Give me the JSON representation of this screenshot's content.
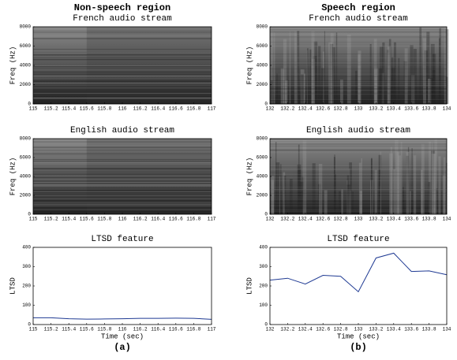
{
  "columns": [
    {
      "title": "Non-speech region",
      "caption": "(a)"
    },
    {
      "title": "Speech region",
      "caption": "(b)"
    }
  ],
  "chart_data": [
    {
      "type": "spectrogram",
      "title": "French audio stream",
      "ylabel": "Freq (Hz)",
      "xlim": [
        115,
        117
      ],
      "xticks": [
        115,
        115.2,
        115.4,
        115.6,
        115.8,
        116,
        116.2,
        116.4,
        116.6,
        116.8,
        117
      ],
      "ylim": [
        0,
        8000
      ],
      "yticks": [
        0,
        2000,
        4000,
        6000,
        8000
      ]
    },
    {
      "type": "spectrogram",
      "title": "French audio stream",
      "ylabel": "Freq (Hz)",
      "xlim": [
        132,
        134
      ],
      "xticks": [
        132,
        132.2,
        132.4,
        132.6,
        132.8,
        133,
        133.2,
        133.4,
        133.6,
        133.8,
        134
      ],
      "ylim": [
        0,
        8000
      ],
      "yticks": [
        0,
        2000,
        4000,
        6000,
        8000
      ]
    },
    {
      "type": "spectrogram",
      "title": "English audio stream",
      "ylabel": "Freq (Hz)",
      "xlim": [
        115,
        117
      ],
      "xticks": [
        115,
        115.2,
        115.4,
        115.6,
        115.8,
        116,
        116.2,
        116.4,
        116.6,
        116.8,
        117
      ],
      "ylim": [
        0,
        8000
      ],
      "yticks": [
        0,
        2000,
        4000,
        6000,
        8000
      ]
    },
    {
      "type": "spectrogram",
      "title": "English audio stream",
      "ylabel": "Freq (Hz)",
      "xlim": [
        132,
        134
      ],
      "xticks": [
        132,
        132.2,
        132.4,
        132.6,
        132.8,
        133,
        133.2,
        133.4,
        133.6,
        133.8,
        134
      ],
      "ylim": [
        0,
        8000
      ],
      "yticks": [
        0,
        2000,
        4000,
        6000,
        8000
      ]
    },
    {
      "type": "line",
      "title": "LTSD feature",
      "ylabel": "LTSD",
      "xlabel": "Time (sec)",
      "xlim": [
        115,
        117
      ],
      "xticks": [
        115,
        115.2,
        115.4,
        115.6,
        115.8,
        116,
        116.2,
        116.4,
        116.6,
        116.8,
        117
      ],
      "ylim": [
        0,
        400
      ],
      "yticks": [
        0,
        100,
        200,
        300,
        400
      ],
      "color": "#1f3a93",
      "x": [
        115,
        115.2,
        115.4,
        115.6,
        115.8,
        116,
        116.2,
        116.4,
        116.6,
        116.8,
        117
      ],
      "values": [
        35,
        35,
        30,
        28,
        29,
        30,
        32,
        32,
        33,
        32,
        27
      ]
    },
    {
      "type": "line",
      "title": "LTSD feature",
      "ylabel": "LTSD",
      "xlabel": "Time (sec)",
      "xlim": [
        132,
        134
      ],
      "xticks": [
        132,
        132.2,
        132.4,
        132.6,
        132.8,
        133,
        133.2,
        133.4,
        133.6,
        133.8,
        134
      ],
      "ylim": [
        0,
        400
      ],
      "yticks": [
        0,
        100,
        200,
        300,
        400
      ],
      "color": "#1f3a93",
      "x": [
        132,
        132.2,
        132.4,
        132.6,
        132.8,
        133,
        133.2,
        133.4,
        133.6,
        133.8,
        134
      ],
      "values": [
        230,
        240,
        210,
        255,
        250,
        170,
        345,
        370,
        275,
        278,
        258
      ]
    }
  ]
}
